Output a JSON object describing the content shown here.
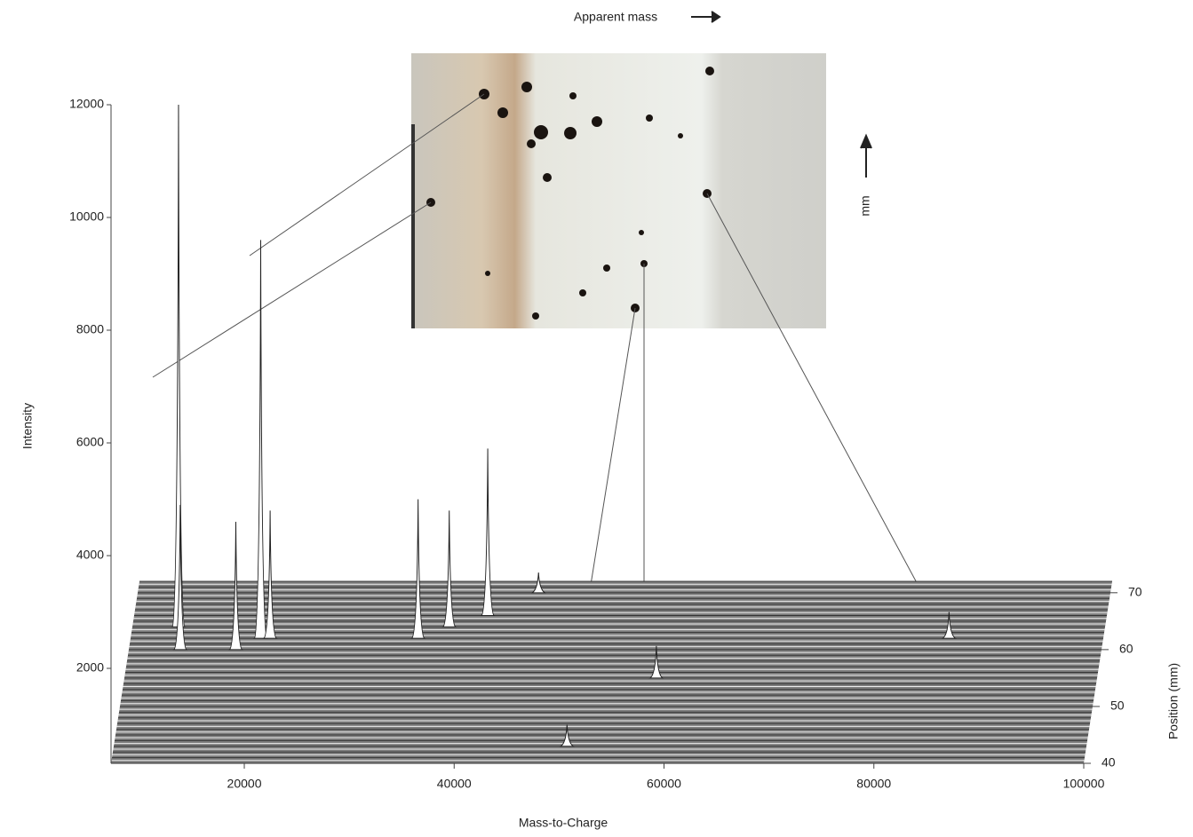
{
  "chart_data": {
    "type": "waterfall",
    "title": "Apparent mass",
    "inset_axis_label": "mm",
    "y_label": "Intensity",
    "x_label": "Mass-to-Charge",
    "z_label": "Position (mm)",
    "xlim": [
      7300,
      100000
    ],
    "xticks": [
      20000,
      40000,
      60000,
      80000,
      100000
    ],
    "ylim": [
      0,
      12000
    ],
    "yticks": [
      2000,
      4000,
      6000,
      8000,
      10000,
      12000
    ],
    "zlim": [
      40,
      72
    ],
    "zticks": [
      40,
      50,
      60,
      70
    ],
    "peaks": [
      {
        "x": 11700,
        "y": 12000,
        "position": 64
      },
      {
        "x": 19700,
        "y": 9600,
        "position": 62
      },
      {
        "x": 41000,
        "y": 5900,
        "position": 66
      },
      {
        "x": 34700,
        "y": 5000,
        "position": 62
      },
      {
        "x": 37500,
        "y": 4800,
        "position": 64
      },
      {
        "x": 12200,
        "y": 4900,
        "position": 60
      },
      {
        "x": 20600,
        "y": 4800,
        "position": 62
      },
      {
        "x": 17500,
        "y": 4600,
        "position": 60
      },
      {
        "x": 45500,
        "y": 3700,
        "position": 70
      },
      {
        "x": 58000,
        "y": 2400,
        "position": 55
      },
      {
        "x": 85300,
        "y": 3000,
        "position": 62
      },
      {
        "x": 50500,
        "y": 1000,
        "position": 43
      }
    ]
  }
}
